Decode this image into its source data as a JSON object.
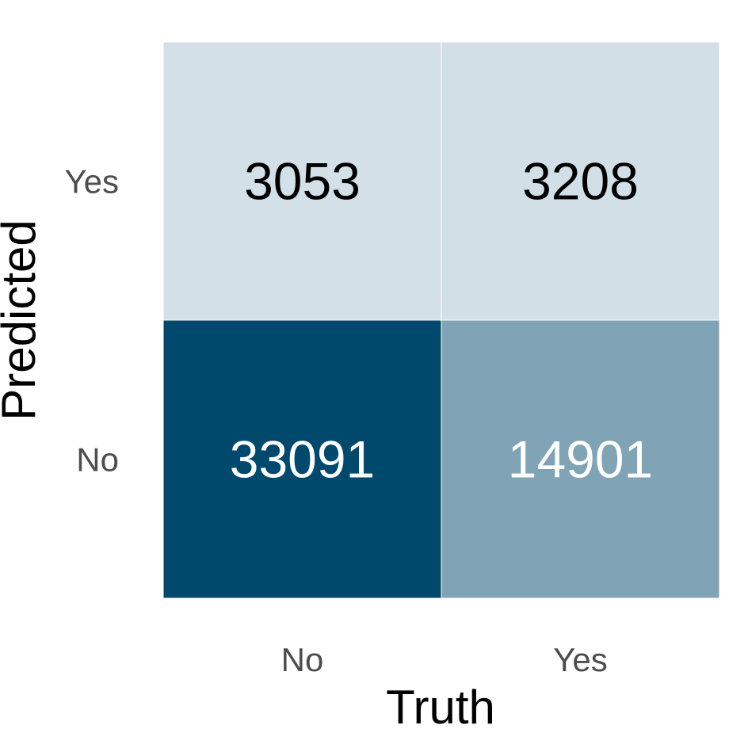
{
  "chart_data": {
    "type": "heatmap",
    "xlabel": "Truth",
    "ylabel": "Predicted",
    "x_categories": [
      "No",
      "Yes"
    ],
    "y_categories": [
      "No",
      "Yes"
    ],
    "cells": [
      {
        "truth": "No",
        "predicted": "Yes",
        "value": 3053
      },
      {
        "truth": "Yes",
        "predicted": "Yes",
        "value": 3208
      },
      {
        "truth": "No",
        "predicted": "No",
        "value": 33091
      },
      {
        "truth": "Yes",
        "predicted": "No",
        "value": 14901
      }
    ],
    "colors": {
      "low": "#e9eff3",
      "high": "#00486c",
      "cell_border": "#ffffff",
      "text_dark": "#000000",
      "text_light": "#ffffff"
    }
  }
}
